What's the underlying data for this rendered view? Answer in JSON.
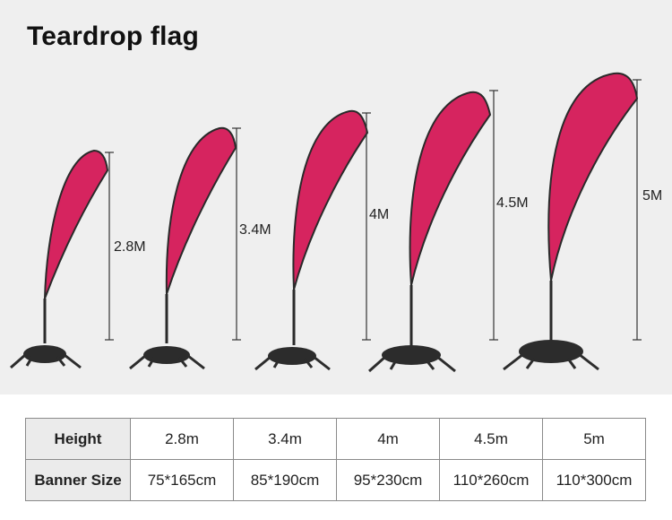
{
  "title": "Teardrop flag",
  "colors": {
    "flag": "#d6245f",
    "pole": "#2a2a2a",
    "panel": "#efefef"
  },
  "flags": [
    {
      "height_label": "2.8M"
    },
    {
      "height_label": "3.4M"
    },
    {
      "height_label": "4M"
    },
    {
      "height_label": "4.5M"
    },
    {
      "height_label": "5M"
    }
  ],
  "table": {
    "rows": [
      {
        "header": "Height",
        "values": [
          "2.8m",
          "3.4m",
          "4m",
          "4.5m",
          "5m"
        ]
      },
      {
        "header": "Banner Size",
        "values": [
          "75*165cm",
          "85*190cm",
          "95*230cm",
          "110*260cm",
          "110*300cm"
        ]
      }
    ]
  }
}
